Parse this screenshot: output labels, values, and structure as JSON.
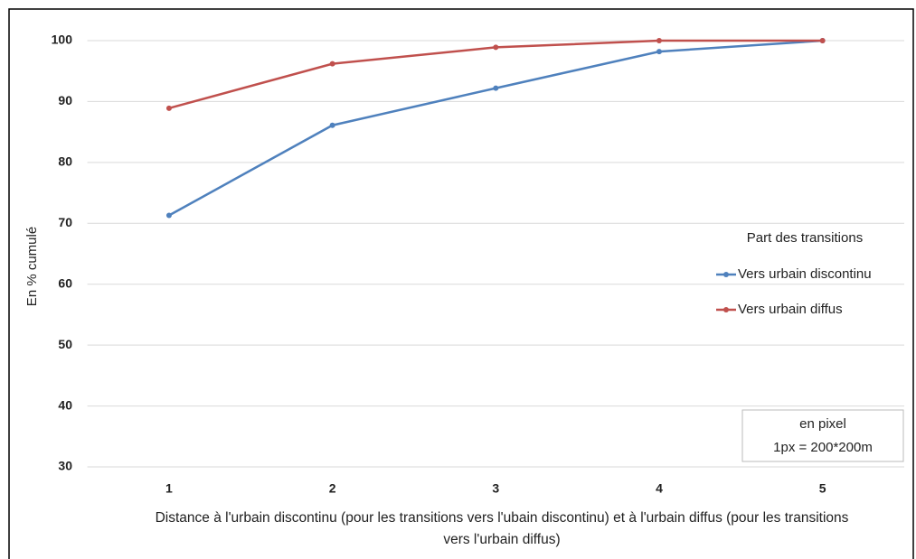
{
  "chart_data": {
    "type": "line",
    "categories": [
      "1",
      "2",
      "3",
      "4",
      "5"
    ],
    "series": [
      {
        "name": "Vers urbain discontinu",
        "color": "#4f81bd",
        "values": [
          71.3,
          86.1,
          92.2,
          98.2,
          100
        ]
      },
      {
        "name": "Vers urbain diffus",
        "color": "#c0504d",
        "values": [
          88.9,
          96.2,
          98.9,
          100,
          100
        ]
      }
    ],
    "ylim": [
      30,
      100
    ],
    "yticks": [
      30,
      40,
      50,
      60,
      70,
      80,
      90,
      100
    ],
    "grid": true,
    "y_label": "En % cumulé",
    "x_label": "Distance à l'urbain discontinu (pour les transitions vers l'ubain discontinu) et à l'urbain diffus (pour les transitions vers l'urbain diffus)",
    "legend_title": "Part des transitions",
    "legend": "right",
    "note": [
      "en pixel",
      "1px = 200*200m"
    ]
  }
}
